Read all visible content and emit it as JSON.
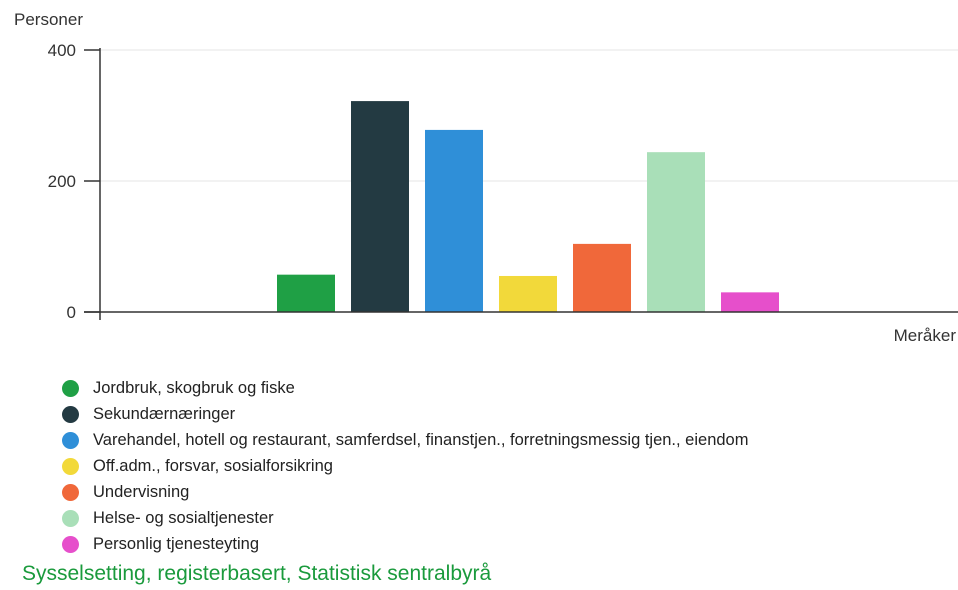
{
  "chart_data": {
    "type": "bar",
    "ylabel": "Personer",
    "xlabel": "Meråker",
    "categories": [
      "Meråker"
    ],
    "ylim": [
      0,
      400
    ],
    "yticks": [
      0,
      200,
      400
    ],
    "grid": true,
    "legend_position": "bottom",
    "series": [
      {
        "name": "Jordbruk, skogbruk og fiske",
        "color": "#1fa045",
        "values": [
          57
        ]
      },
      {
        "name": "Sekundærnæringer",
        "color": "#233a42",
        "values": [
          322
        ]
      },
      {
        "name": "Varehandel, hotell og restaurant, samferdsel, finanstjen., forretningsmessig tjen., eiendom",
        "color": "#2f8fd8",
        "values": [
          278
        ]
      },
      {
        "name": "Off.adm., forsvar, sosialforsikring",
        "color": "#f2d93a",
        "values": [
          55
        ]
      },
      {
        "name": "Undervisning",
        "color": "#f0683a",
        "values": [
          104
        ]
      },
      {
        "name": "Helse- og sosialtjenester",
        "color": "#a9dfb8",
        "values": [
          244
        ]
      },
      {
        "name": "Personlig tjenesteyting",
        "color": "#e64fcb",
        "values": [
          30
        ]
      }
    ]
  },
  "source": "Sysselsetting, registerbasert, Statistisk sentralbyrå"
}
